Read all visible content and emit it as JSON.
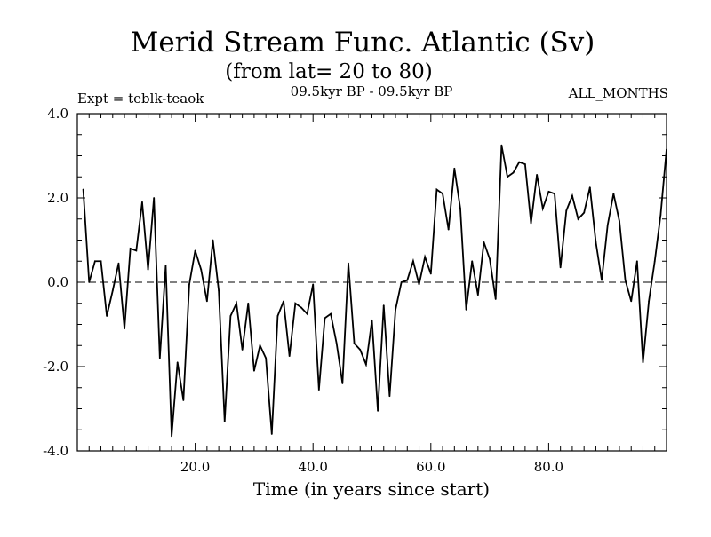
{
  "chart_data": {
    "type": "line",
    "title": "Merid Stream Func. Atlantic (Sv)",
    "subtitle": "(from lat= 20 to 80)",
    "experiment": "Expt = teblk-teaok",
    "period": "09.5kyr BP - 09.5kyr BP",
    "months": "ALL_MONTHS",
    "xlabel": "Time (in years since start)",
    "ylabel": "",
    "xlim": [
      0,
      100
    ],
    "ylim": [
      -4.0,
      4.0
    ],
    "x_ticks": [
      20,
      40,
      60,
      80
    ],
    "x_tick_labels": [
      "20.0",
      "40.0",
      "60.0",
      "80.0"
    ],
    "y_ticks": [
      -4,
      -2,
      0,
      2,
      4
    ],
    "y_tick_labels": [
      "-4.0",
      "-2.0",
      "0.0",
      "2.0",
      "4.0"
    ],
    "zero_line": "dashed",
    "series": [
      {
        "name": "Merid Stream Func.",
        "x": [
          1,
          2,
          3,
          4,
          5,
          6,
          7,
          8,
          9,
          10,
          11,
          12,
          13,
          14,
          15,
          16,
          17,
          18,
          19,
          20,
          21,
          22,
          23,
          24,
          25,
          26,
          27,
          28,
          29,
          30,
          31,
          32,
          33,
          34,
          35,
          36,
          37,
          38,
          39,
          40,
          41,
          42,
          43,
          44,
          45,
          46,
          47,
          48,
          49,
          50,
          51,
          52,
          53,
          54,
          55,
          56,
          57,
          58,
          59,
          60,
          61,
          62,
          63,
          64,
          65,
          66,
          67,
          68,
          69,
          70,
          71,
          72,
          73,
          74,
          75,
          76,
          77,
          78,
          79,
          80,
          81,
          82,
          83,
          84,
          85,
          86,
          87,
          88,
          89,
          90,
          91,
          92,
          93,
          94,
          95,
          96,
          97,
          98,
          99,
          100
        ],
        "values": [
          2.2,
          0.0,
          0.5,
          0.5,
          -0.8,
          -0.2,
          0.45,
          -1.1,
          0.8,
          0.75,
          1.9,
          0.3,
          2.0,
          -1.8,
          0.4,
          -3.65,
          -1.9,
          -2.8,
          -0.05,
          0.75,
          0.3,
          -0.45,
          1.0,
          -0.2,
          -3.3,
          -0.8,
          -0.5,
          -1.6,
          -0.5,
          -2.1,
          -1.5,
          -1.8,
          -3.6,
          -0.8,
          -0.45,
          -1.75,
          -0.5,
          -0.6,
          -0.75,
          -0.05,
          -2.55,
          -0.85,
          -0.75,
          -1.45,
          -2.4,
          0.45,
          -1.45,
          -1.6,
          -1.95,
          -0.9,
          -3.05,
          -0.55,
          -2.7,
          -0.65,
          0.0,
          0.05,
          0.5,
          -0.05,
          0.6,
          0.2,
          2.2,
          2.1,
          1.25,
          2.7,
          1.75,
          -0.65,
          0.5,
          -0.3,
          0.95,
          0.55,
          -0.4,
          3.25,
          2.5,
          2.6,
          2.85,
          2.8,
          1.4,
          2.55,
          1.75,
          2.15,
          2.1,
          0.35,
          1.7,
          2.05,
          1.5,
          1.65,
          2.25,
          0.95,
          0.05,
          1.35,
          2.1,
          1.45,
          0.05,
          -0.45,
          0.5,
          -1.9,
          -0.45,
          0.5,
          1.6,
          3.15
        ]
      }
    ]
  }
}
